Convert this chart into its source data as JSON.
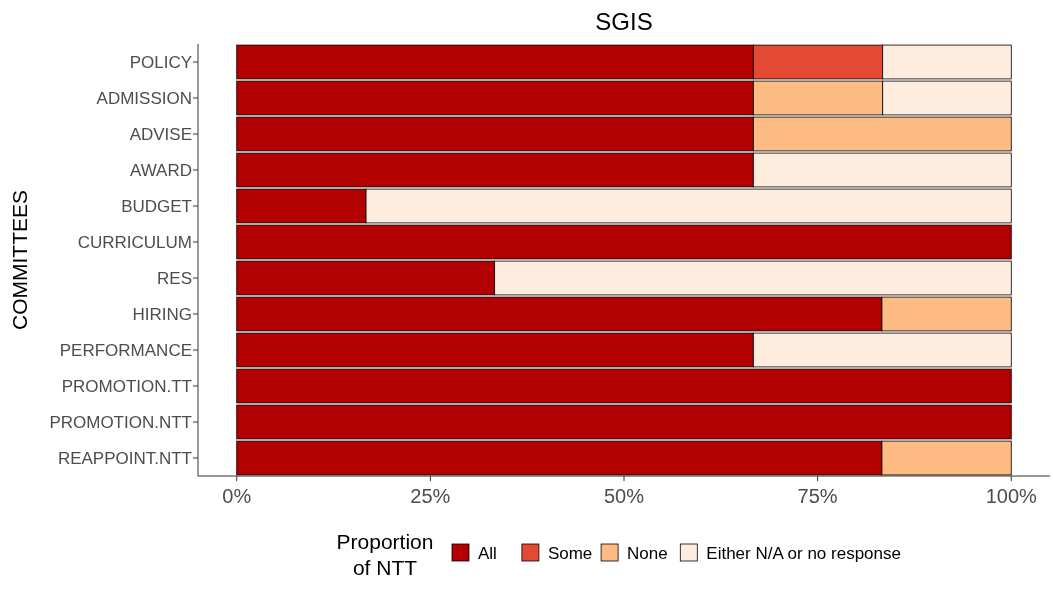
{
  "chart_data": {
    "type": "bar",
    "title": "SGIS",
    "orientation": "horizontal",
    "stacked": true,
    "ylabel": "COMMITTEES",
    "legend_title": "Proportion\nof NTT",
    "legend": "bottom",
    "grid": false,
    "categories": [
      "POLICY",
      "ADMISSION",
      "ADVISE",
      "AWARD",
      "BUDGET",
      "CURRICULUM",
      "RES",
      "HIRING",
      "PERFORMANCE",
      "PROMOTION.TT",
      "PROMOTION.NTT",
      "REAPPOINT.NTT"
    ],
    "xlim": [
      -5,
      105
    ],
    "xticks": [
      {
        "value": 0,
        "label": "0%"
      },
      {
        "value": 25,
        "label": "25%"
      },
      {
        "value": 50,
        "label": "50%"
      },
      {
        "value": 75,
        "label": "75%"
      },
      {
        "value": 100,
        "label": "100%"
      }
    ],
    "series": [
      {
        "name": "All",
        "color": "#b30000",
        "values": [
          66.7,
          66.7,
          66.7,
          66.7,
          16.7,
          100,
          33.3,
          83.3,
          66.7,
          100,
          100,
          83.3
        ]
      },
      {
        "name": "Some",
        "color": "#e34a33",
        "values": [
          16.7,
          0,
          0,
          0,
          0,
          0,
          0,
          0,
          0,
          0,
          0,
          0
        ]
      },
      {
        "name": "None",
        "color": "#fdbb84",
        "values": [
          0,
          16.7,
          33.3,
          0,
          0,
          0,
          0,
          16.7,
          0,
          0,
          0,
          16.7
        ]
      },
      {
        "name": "Either N/A or no response",
        "color": "#feedde",
        "values": [
          16.6,
          16.6,
          0,
          33.3,
          83.3,
          0,
          66.7,
          0,
          33.3,
          0,
          0,
          0
        ]
      }
    ]
  }
}
